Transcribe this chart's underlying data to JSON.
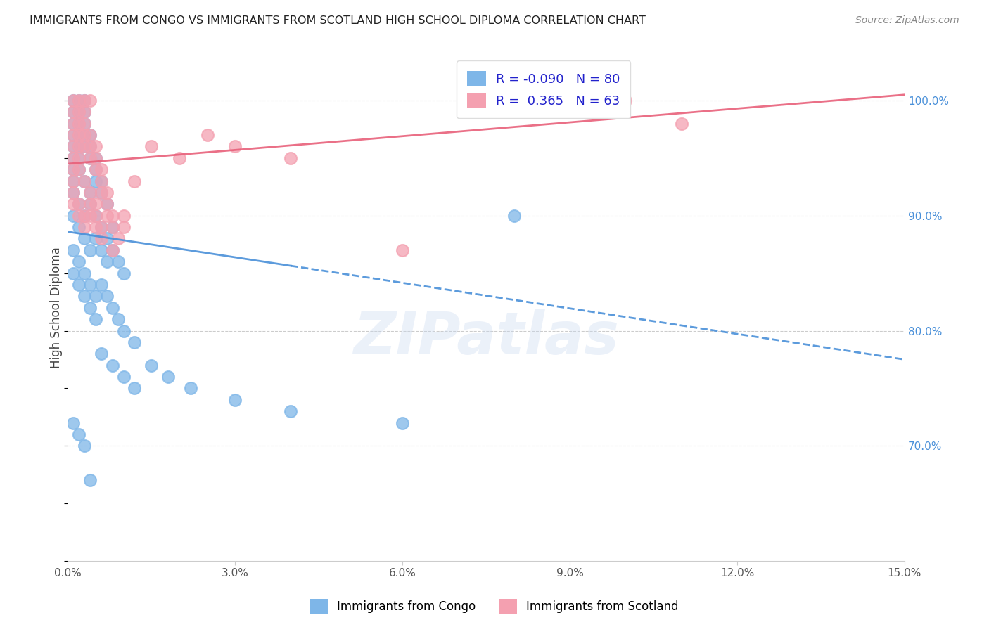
{
  "title": "IMMIGRANTS FROM CONGO VS IMMIGRANTS FROM SCOTLAND HIGH SCHOOL DIPLOMA CORRELATION CHART",
  "source": "Source: ZipAtlas.com",
  "ylabel": "High School Diploma",
  "yaxis_labels": [
    "100.0%",
    "90.0%",
    "80.0%",
    "70.0%"
  ],
  "yaxis_values": [
    1.0,
    0.9,
    0.8,
    0.7
  ],
  "xlim": [
    0.0,
    0.15
  ],
  "ylim": [
    0.6,
    1.04
  ],
  "legend_r_congo": "-0.090",
  "legend_n_congo": "80",
  "legend_r_scotland": "0.365",
  "legend_n_scotland": "63",
  "color_congo": "#7eb6e8",
  "color_scotland": "#f4a0b0",
  "color_trendline_congo": "#4a90d9",
  "color_trendline_scotland": "#e8607a",
  "congo_x": [
    0.001,
    0.002,
    0.001,
    0.003,
    0.001,
    0.002,
    0.001,
    0.002,
    0.003,
    0.001,
    0.002,
    0.003,
    0.004,
    0.001,
    0.002,
    0.003,
    0.004,
    0.005,
    0.001,
    0.002,
    0.003,
    0.004,
    0.005,
    0.006,
    0.001,
    0.002,
    0.003,
    0.004,
    0.005,
    0.006,
    0.007,
    0.001,
    0.002,
    0.003,
    0.004,
    0.005,
    0.006,
    0.007,
    0.008,
    0.001,
    0.002,
    0.003,
    0.004,
    0.005,
    0.006,
    0.007,
    0.008,
    0.009,
    0.01,
    0.001,
    0.002,
    0.003,
    0.004,
    0.005,
    0.006,
    0.007,
    0.008,
    0.009,
    0.01,
    0.012,
    0.001,
    0.002,
    0.003,
    0.004,
    0.005,
    0.006,
    0.008,
    0.01,
    0.012,
    0.015,
    0.018,
    0.022,
    0.03,
    0.04,
    0.06,
    0.08,
    0.001,
    0.002,
    0.003,
    0.004
  ],
  "congo_y": [
    1.0,
    1.0,
    0.99,
    1.0,
    0.98,
    0.99,
    0.97,
    0.98,
    0.99,
    0.96,
    0.97,
    0.98,
    0.97,
    0.95,
    0.96,
    0.97,
    0.96,
    0.95,
    0.94,
    0.95,
    0.96,
    0.95,
    0.94,
    0.93,
    0.93,
    0.94,
    0.93,
    0.92,
    0.93,
    0.92,
    0.91,
    0.92,
    0.91,
    0.9,
    0.91,
    0.9,
    0.89,
    0.88,
    0.89,
    0.9,
    0.89,
    0.88,
    0.87,
    0.88,
    0.87,
    0.86,
    0.87,
    0.86,
    0.85,
    0.87,
    0.86,
    0.85,
    0.84,
    0.83,
    0.84,
    0.83,
    0.82,
    0.81,
    0.8,
    0.79,
    0.85,
    0.84,
    0.83,
    0.82,
    0.81,
    0.78,
    0.77,
    0.76,
    0.75,
    0.77,
    0.76,
    0.75,
    0.74,
    0.73,
    0.72,
    0.9,
    0.72,
    0.71,
    0.7,
    0.67
  ],
  "scotland_x": [
    0.001,
    0.001,
    0.002,
    0.001,
    0.002,
    0.003,
    0.001,
    0.002,
    0.003,
    0.004,
    0.001,
    0.002,
    0.003,
    0.004,
    0.005,
    0.001,
    0.002,
    0.003,
    0.004,
    0.005,
    0.006,
    0.001,
    0.002,
    0.003,
    0.004,
    0.005,
    0.006,
    0.007,
    0.001,
    0.002,
    0.003,
    0.004,
    0.005,
    0.006,
    0.007,
    0.008,
    0.001,
    0.002,
    0.003,
    0.004,
    0.005,
    0.006,
    0.007,
    0.008,
    0.009,
    0.01,
    0.001,
    0.002,
    0.003,
    0.004,
    0.005,
    0.006,
    0.008,
    0.01,
    0.012,
    0.015,
    0.02,
    0.025,
    0.03,
    0.04,
    0.06,
    0.1,
    0.11
  ],
  "scotland_y": [
    1.0,
    0.99,
    1.0,
    0.98,
    0.99,
    1.0,
    0.97,
    0.98,
    0.99,
    1.0,
    0.96,
    0.97,
    0.98,
    0.97,
    0.96,
    0.95,
    0.96,
    0.97,
    0.96,
    0.95,
    0.94,
    0.94,
    0.95,
    0.96,
    0.95,
    0.94,
    0.93,
    0.92,
    0.93,
    0.94,
    0.93,
    0.92,
    0.91,
    0.92,
    0.91,
    0.9,
    0.92,
    0.91,
    0.9,
    0.91,
    0.9,
    0.89,
    0.9,
    0.89,
    0.88,
    0.89,
    0.91,
    0.9,
    0.89,
    0.9,
    0.89,
    0.88,
    0.87,
    0.9,
    0.93,
    0.96,
    0.95,
    0.97,
    0.96,
    0.95,
    0.87,
    1.0,
    0.98
  ]
}
